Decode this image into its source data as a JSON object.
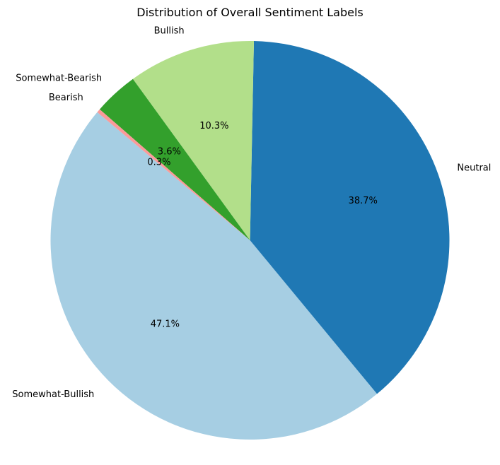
{
  "chart_data": {
    "type": "pie",
    "title": "Distribution of Overall Sentiment Labels",
    "start_angle_deg": 140,
    "direction": "counterclockwise",
    "slices": [
      {
        "label": "Somewhat-Bullish",
        "value": 47.1,
        "pct_label": "47.1%",
        "color": "#a6cee3"
      },
      {
        "label": "Neutral",
        "value": 38.7,
        "pct_label": "38.7%",
        "color": "#1f78b4"
      },
      {
        "label": "Bullish",
        "value": 10.3,
        "pct_label": "10.3%",
        "color": "#b2df8a"
      },
      {
        "label": "Somewhat-Bearish",
        "value": 3.6,
        "pct_label": "3.6%",
        "color": "#33a02c"
      },
      {
        "label": "Bearish",
        "value": 0.3,
        "pct_label": "0.3%",
        "color": "#fb9a99"
      }
    ]
  }
}
